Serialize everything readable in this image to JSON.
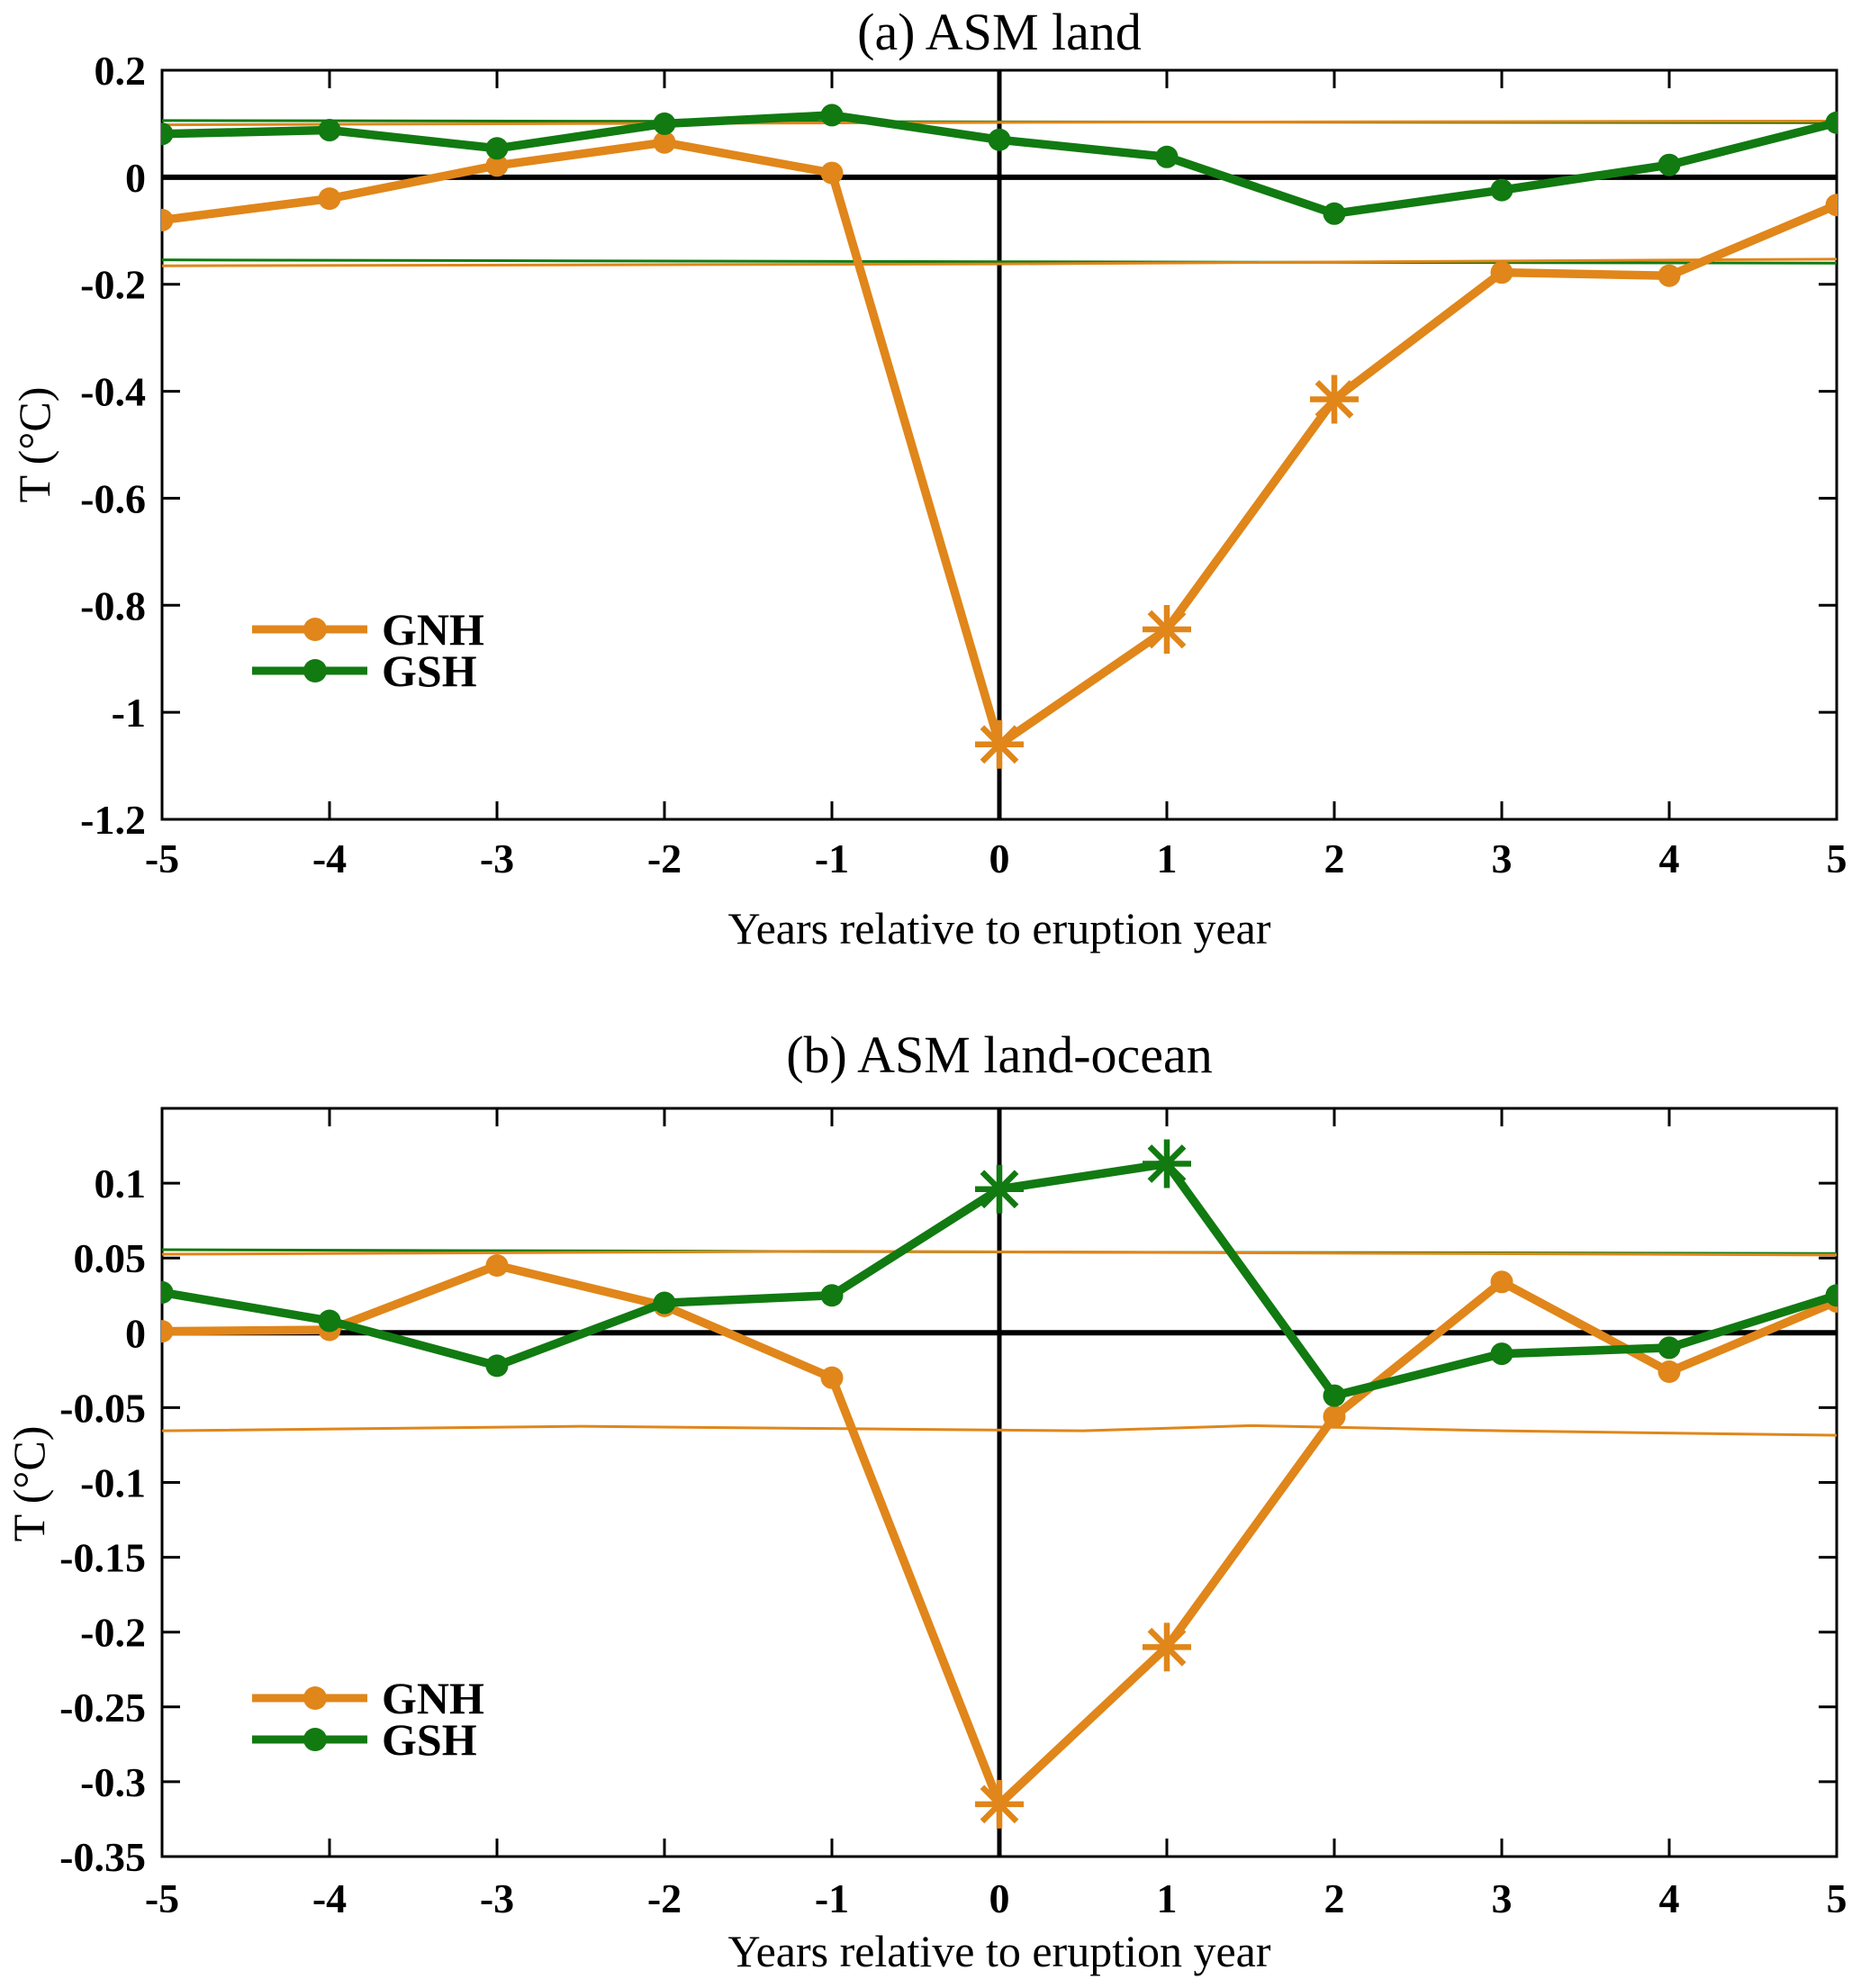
{
  "figure": {
    "background": "#ffffff",
    "colors": {
      "GNH": "#E0861A",
      "GSH": "#117A11",
      "axis": "#000000",
      "zero_line": "#000000",
      "text": "#000000"
    }
  },
  "chart_data": [
    {
      "type": "line",
      "id": "a",
      "title": "(a) ASM land",
      "xlabel": "Years relative to eruption year",
      "ylabel": "T (°C)",
      "xlim": [
        -5,
        5
      ],
      "ylim": [
        -1.2,
        0.2
      ],
      "grid": false,
      "legend_position": "lower-left-inside",
      "x": [
        -5,
        -4,
        -3,
        -2,
        -1,
        0,
        1,
        2,
        3,
        4,
        5
      ],
      "xtick_labels": [
        "-5",
        "-4",
        "-3",
        "-2",
        "-1",
        "0",
        "1",
        "2",
        "3",
        "4",
        "5"
      ],
      "yticks": [
        0.2,
        0,
        -0.2,
        -0.4,
        -0.6,
        -0.8,
        -1,
        -1.2
      ],
      "ytick_labels": [
        "0.2",
        "0",
        "-0.2",
        "-0.4",
        "-0.6",
        "-0.8",
        "-1",
        "-1.2"
      ],
      "series": [
        {
          "name": "GNH",
          "color_key": "GNH",
          "values": [
            -0.08,
            -0.04,
            0.022,
            0.065,
            0.008,
            -1.06,
            -0.845,
            -0.415,
            -0.178,
            -0.184,
            -0.052
          ],
          "starred_x": [
            0,
            1,
            2
          ]
        },
        {
          "name": "GSH",
          "color_key": "GSH",
          "values": [
            0.081,
            0.088,
            0.054,
            0.1,
            0.116,
            0.07,
            0.038,
            -0.068,
            -0.024,
            0.023,
            0.102
          ],
          "starred_x": []
        }
      ],
      "significance_bounds": [
        {
          "color_key": "GSH",
          "points": [
            [
              -5,
              0.106
            ],
            [
              0,
              0.1035
            ],
            [
              5,
              0.102
            ]
          ]
        },
        {
          "color_key": "GNH",
          "points": [
            [
              -5,
              0.098
            ],
            [
              0,
              0.1025
            ],
            [
              5,
              0.105
            ]
          ]
        },
        {
          "color_key": "GSH",
          "points": [
            [
              -5,
              -0.1545
            ],
            [
              0,
              -0.158
            ],
            [
              5,
              -0.1605
            ]
          ]
        },
        {
          "color_key": "GNH",
          "points": [
            [
              -5,
              -0.1655
            ],
            [
              0,
              -0.162
            ],
            [
              5,
              -0.153
            ]
          ]
        }
      ],
      "legend": [
        {
          "label": "GNH",
          "color_key": "GNH"
        },
        {
          "label": "GSH",
          "color_key": "GSH"
        }
      ]
    },
    {
      "type": "line",
      "id": "b",
      "title": "(b) ASM land-ocean",
      "xlabel": "Years relative to eruption year",
      "ylabel": "T (°C)",
      "xlim": [
        -5,
        5
      ],
      "ylim": [
        -0.35,
        0.15
      ],
      "grid": false,
      "legend_position": "lower-left-inside",
      "x": [
        -5,
        -4,
        -3,
        -2,
        -1,
        0,
        1,
        2,
        3,
        4,
        5
      ],
      "xtick_labels": [
        "-5",
        "-4",
        "-3",
        "-2",
        "-1",
        "0",
        "1",
        "2",
        "3",
        "4",
        "5"
      ],
      "yticks": [
        0.1,
        0.05,
        0,
        -0.05,
        -0.1,
        -0.15,
        -0.2,
        -0.25,
        -0.3,
        -0.35
      ],
      "ytick_labels": [
        "0.1",
        "0.05",
        "0",
        "-0.05",
        "-0.1",
        "-0.15",
        "-0.2",
        "-0.25",
        "-0.3",
        "-0.35"
      ],
      "series": [
        {
          "name": "GNH",
          "color_key": "GNH",
          "values": [
            0.001,
            0.002,
            0.045,
            0.018,
            -0.03,
            -0.315,
            -0.21,
            -0.056,
            0.034,
            -0.026,
            0.021
          ],
          "starred_x": [
            0,
            1
          ]
        },
        {
          "name": "GSH",
          "color_key": "GSH",
          "values": [
            0.027,
            0.008,
            -0.022,
            0.02,
            0.025,
            0.096,
            0.113,
            -0.042,
            -0.014,
            -0.01,
            0.025
          ],
          "starred_x": [
            0,
            1
          ]
        }
      ],
      "significance_bounds": [
        {
          "color_key": "GSH",
          "points": [
            [
              -5,
              0.0555
            ],
            [
              0,
              0.054
            ],
            [
              5,
              0.053
            ]
          ]
        },
        {
          "color_key": "GNH",
          "points": [
            [
              -5,
              0.0525
            ],
            [
              -1,
              0.0545
            ],
            [
              5,
              0.052
            ]
          ]
        },
        {
          "color_key": "GNH",
          "points": [
            [
              -5,
              -0.0655
            ],
            [
              -2.5,
              -0.0625
            ],
            [
              -1,
              -0.064
            ],
            [
              0.5,
              -0.0655
            ],
            [
              1.5,
              -0.062
            ],
            [
              3,
              -0.0655
            ],
            [
              5,
              -0.0685
            ]
          ]
        }
      ],
      "legend": [
        {
          "label": "GNH",
          "color_key": "GNH"
        },
        {
          "label": "GSH",
          "color_key": "GSH"
        }
      ]
    }
  ]
}
